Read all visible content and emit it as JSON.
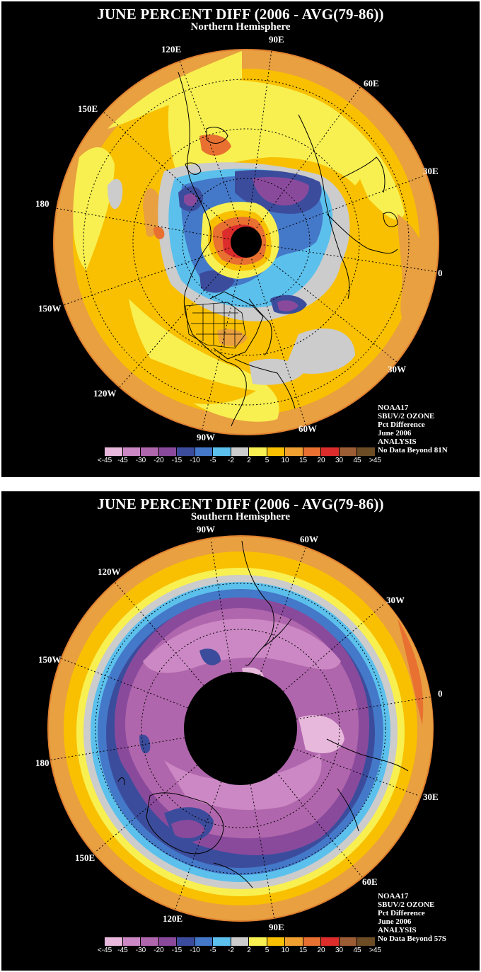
{
  "legend": {
    "colors": [
      "#e8b8dc",
      "#cc88c4",
      "#b066ac",
      "#8a4a9c",
      "#3c4c9c",
      "#4478c8",
      "#5cc0ec",
      "#cccccc",
      "#f8f050",
      "#f8c000",
      "#f0a030",
      "#e87030",
      "#dc2c2c",
      "#9c5c34",
      "#6c4c24"
    ],
    "ticks": [
      "<-45",
      "-45",
      "-30",
      "-20",
      "-15",
      "-10",
      "-5",
      "-2",
      "2",
      "5",
      "10",
      "15",
      "20",
      "30",
      "45",
      ">45"
    ]
  },
  "panels": [
    {
      "title": "JUNE PERCENT DIFF (2006 - AVG(79-86))",
      "subtitle": "Northern Hemisphere",
      "lon_labels": [
        "90E",
        "60E",
        "30E",
        "0",
        "30W",
        "60W",
        "90W",
        "120W",
        "150W",
        "180",
        "150E",
        "120E"
      ],
      "info": [
        "NOAA17",
        "SBUV/2 OZONE",
        "Pct Difference",
        "June 2006",
        "ANALYSIS",
        "No Data Beyond 81N"
      ]
    },
    {
      "title": "JUNE PERCENT DIFF (2006 - AVG(79-86))",
      "subtitle": "Southern Hemisphere",
      "lon_labels": [
        "90W",
        "60W",
        "30W",
        "0",
        "30E",
        "60E",
        "90E",
        "120E",
        "150E",
        "180",
        "150W",
        "120W"
      ],
      "info": [
        "NOAA17",
        "SBUV/2 OZONE",
        "Pct Difference",
        "June 2006",
        "ANALYSIS",
        "No Data Beyond 57S"
      ]
    }
  ]
}
